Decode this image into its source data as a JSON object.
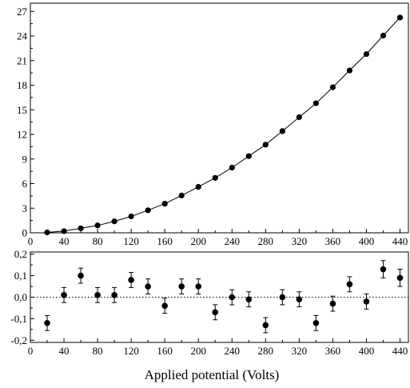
{
  "chart_data": [
    {
      "type": "line",
      "title": "",
      "xlabel": "",
      "ylabel": "",
      "xlim": [
        0,
        450
      ],
      "ylim": [
        0,
        28
      ],
      "xticks": [
        0,
        40,
        80,
        120,
        160,
        200,
        240,
        280,
        320,
        360,
        400,
        440
      ],
      "xtick_labels": [
        "0",
        "40",
        "80",
        "120",
        "160",
        "200",
        "240",
        "280",
        "320",
        "360",
        "400",
        "440"
      ],
      "yticks": [
        0,
        3,
        6,
        9,
        12,
        15,
        18,
        21,
        24,
        27
      ],
      "ytick_labels": [
        "0",
        "3",
        "6",
        "9",
        "12",
        "15",
        "18",
        "21",
        "24",
        "27"
      ],
      "grid": false,
      "series": [
        {
          "style": "markers-with-fit-line",
          "color": "#000000",
          "x": [
            20,
            40,
            60,
            80,
            100,
            120,
            140,
            160,
            180,
            200,
            220,
            240,
            260,
            280,
            300,
            320,
            340,
            360,
            380,
            400,
            420,
            440
          ],
          "y": [
            0.05,
            0.2,
            0.55,
            0.9,
            1.4,
            2.0,
            2.75,
            3.55,
            4.55,
            5.6,
            6.7,
            7.95,
            9.35,
            10.75,
            12.4,
            14.1,
            15.8,
            17.75,
            19.8,
            21.8,
            24.05,
            26.25
          ]
        }
      ]
    },
    {
      "type": "scatter",
      "title": "",
      "xlabel": "Applied potential (Volts)",
      "ylabel": "",
      "xlim": [
        0,
        450
      ],
      "ylim": [
        -0.21,
        0.21
      ],
      "xticks": [
        0,
        40,
        80,
        120,
        160,
        200,
        240,
        280,
        320,
        360,
        400,
        440
      ],
      "xtick_labels": [
        "0",
        "40",
        "80",
        "120",
        "160",
        "200",
        "240",
        "280",
        "320",
        "360",
        "400",
        "440"
      ],
      "yticks": [
        0.2,
        0.1,
        0.0,
        -0.1,
        -0.2
      ],
      "ytick_labels": [
        "0,2",
        "0,1",
        "0,0",
        "-0,1",
        "-0,2"
      ],
      "zero_line": "dotted",
      "grid": false,
      "series": [
        {
          "style": "markers-with-error-bars",
          "color": "#000000",
          "x": [
            20,
            40,
            60,
            80,
            100,
            120,
            140,
            160,
            180,
            200,
            220,
            240,
            260,
            280,
            300,
            320,
            340,
            360,
            380,
            400,
            420,
            440
          ],
          "y": [
            -0.12,
            0.01,
            0.1,
            0.01,
            0.01,
            0.08,
            0.05,
            -0.04,
            0.05,
            0.05,
            -0.07,
            0.0,
            -0.01,
            -0.13,
            0.0,
            -0.01,
            -0.12,
            -0.03,
            0.06,
            -0.02,
            0.13,
            0.09
          ],
          "error": [
            0.035,
            0.035,
            0.035,
            0.035,
            0.035,
            0.035,
            0.035,
            0.035,
            0.035,
            0.035,
            0.035,
            0.035,
            0.035,
            0.035,
            0.035,
            0.035,
            0.035,
            0.035,
            0.035,
            0.035,
            0.04,
            0.04
          ]
        }
      ]
    }
  ]
}
